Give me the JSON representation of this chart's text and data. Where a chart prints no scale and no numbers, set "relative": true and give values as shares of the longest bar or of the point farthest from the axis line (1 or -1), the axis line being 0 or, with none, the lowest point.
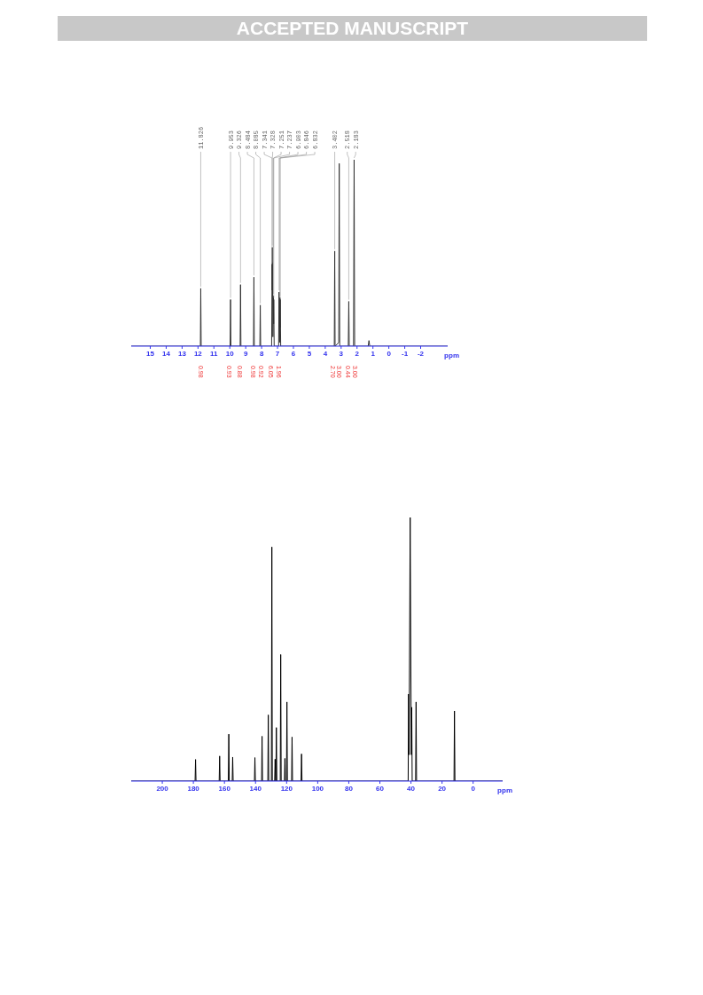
{
  "chart_data": [
    {
      "type": "line",
      "title": "ACCEPTED MANUSCRIPT",
      "xlabel": "ppm",
      "relative": true,
      "xlim": [
        16.2,
        -3.7
      ],
      "xticks": [
        15,
        14,
        13,
        12,
        11,
        10,
        9,
        8,
        7,
        6,
        5,
        4,
        3,
        2,
        1,
        0,
        -1,
        -2
      ],
      "x": [
        -3.7,
        1.2,
        1.25,
        1.3,
        2.15,
        2.183,
        2.22,
        2.49,
        2.518,
        2.55,
        3.09,
        3.12,
        3.15,
        3.38,
        3.402,
        3.43,
        6.8,
        6.832,
        6.84,
        6.846,
        6.87,
        6.903,
        6.93,
        7.21,
        7.237,
        7.245,
        7.251,
        7.29,
        7.328,
        7.335,
        7.341,
        7.37,
        8.06,
        8.085,
        8.11,
        8.46,
        8.484,
        8.51,
        9.3,
        9.326,
        9.35,
        9.93,
        9.953,
        9.98,
        11.8,
        11.826,
        11.85,
        16.2
      ],
      "series": [
        {
          "color": "#333333",
          "values": [
            0,
            0,
            0.03,
            0,
            0,
            1.0,
            0,
            0,
            0.24,
            0,
            0,
            0.98,
            0.02,
            0,
            0.51,
            0,
            0,
            0.25,
            0.1,
            0.26,
            0.02,
            0.29,
            0,
            0,
            0.25,
            0.12,
            0.27,
            0.05,
            0.53,
            0.3,
            0.44,
            0,
            0,
            0.22,
            0,
            0,
            0.37,
            0,
            0,
            0.33,
            0,
            0,
            0.25,
            0,
            0,
            0.31,
            0,
            0
          ]
        }
      ],
      "annotations": [
        {
          "text": "11.826",
          "x": 11.826,
          "y": 0.31
        },
        {
          "text": "9.953",
          "x": 9.953,
          "y": 0.25
        },
        {
          "text": "9.326",
          "x": 9.326,
          "y": 0.33
        },
        {
          "text": "8.484",
          "x": 8.484,
          "y": 0.37
        },
        {
          "text": "8.085",
          "x": 8.085,
          "y": 0.22
        },
        {
          "text": "7.341",
          "x": 7.341,
          "y": 0.44
        },
        {
          "text": "7.328",
          "x": 7.328,
          "y": 0.53
        },
        {
          "text": "7.251",
          "x": 7.251,
          "y": 0.27
        },
        {
          "text": "7.237",
          "x": 7.237,
          "y": 0.25
        },
        {
          "text": "6.903",
          "x": 6.903,
          "y": 0.29
        },
        {
          "text": "6.846",
          "x": 6.846,
          "y": 0.26
        },
        {
          "text": "6.832",
          "x": 6.832,
          "y": 0.25
        },
        {
          "text": "3.402",
          "x": 3.402,
          "y": 0.51
        },
        {
          "text": "2.518",
          "x": 2.518,
          "y": 0.24
        },
        {
          "text": "2.183",
          "x": 2.183,
          "y": 1.0
        },
        "0.98",
        "0.93",
        "0.88",
        "0.98",
        "0.92",
        "6.05",
        "1.96",
        "2.70",
        "3.00",
        "0.44",
        "3.00"
      ]
    },
    {
      "type": "line",
      "xlabel": "ppm",
      "relative": true,
      "xlim": [
        220,
        -19
      ],
      "xticks": [
        200,
        180,
        160,
        140,
        120,
        100,
        80,
        60,
        40,
        20,
        0
      ],
      "x": [
        -19,
        11.7,
        12.0,
        12.3,
        36.4,
        36.7,
        37.0,
        39.2,
        39.5,
        39.8,
        40.5,
        41.2,
        41.5,
        41.8,
        110.1,
        110.4,
        110.7,
        116.2,
        116.5,
        116.8,
        119.5,
        119.8,
        120.1,
        120.8,
        121.1,
        121.4,
        123.5,
        123.8,
        124.1,
        126.3,
        126.6,
        126.9,
        127.1,
        127.4,
        127.7,
        129.2,
        129.5,
        129.8,
        131.5,
        131.8,
        132.1,
        135.5,
        135.8,
        136.1,
        140.1,
        140.4,
        140.7,
        154.4,
        154.7,
        155.0,
        156.9,
        157.2,
        157.5,
        162.8,
        163.1,
        163.4,
        178.3,
        178.6,
        178.9,
        220
      ],
      "series": [
        {
          "color": "#000000",
          "values": [
            0,
            0,
            0.266,
            0,
            0,
            0.3,
            0,
            0,
            0.28,
            0.1,
            1.0,
            0.1,
            0.33,
            0,
            0,
            0.103,
            0,
            0,
            0.167,
            0,
            0,
            0.3,
            0,
            0,
            0.086,
            0,
            0,
            0.48,
            0,
            0,
            0.203,
            0,
            0,
            0.083,
            0,
            0,
            0.888,
            0,
            0,
            0.251,
            0,
            0,
            0.17,
            0,
            0,
            0.089,
            0,
            0,
            0.091,
            0,
            0,
            0.178,
            0,
            0,
            0.095,
            0,
            0,
            0.082,
            0,
            0
          ]
        }
      ]
    }
  ]
}
